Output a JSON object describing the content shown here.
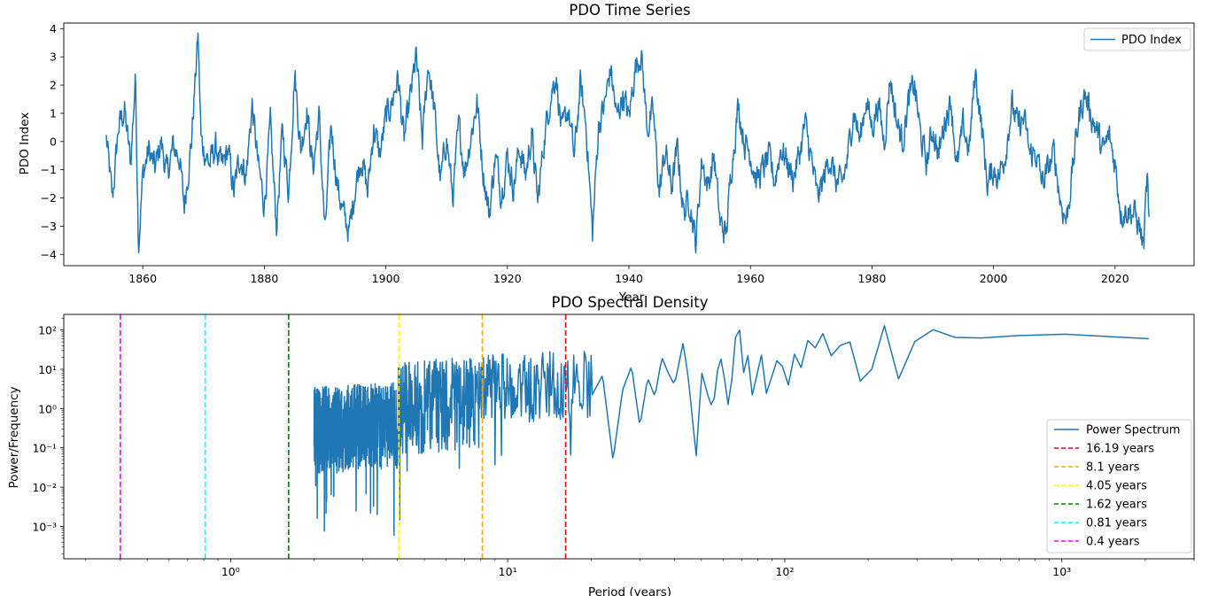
{
  "chart_data": [
    {
      "type": "line",
      "title": "PDO Time Series",
      "xlabel": "Year",
      "ylabel": "PDO Index",
      "xlim": [
        1847,
        2033
      ],
      "ylim": [
        -4.4,
        4.2
      ],
      "xticks": [
        "1860",
        "1880",
        "1900",
        "1920",
        "1940",
        "1960",
        "1980",
        "2000",
        "2020"
      ],
      "yticks": [
        "4",
        "3",
        "2",
        "1",
        "0",
        "−1",
        "−2",
        "−3",
        "−4"
      ],
      "legend_position": "top-right",
      "grid": false,
      "series": [
        {
          "name": "PDO Index",
          "color": "#1f77b4",
          "x_start": 1854.0,
          "x_step": 0.0833333,
          "n_points": 2060,
          "anchors": [
            [
              1854.0,
              0.1
            ],
            [
              1855.0,
              -2.1
            ],
            [
              1856.0,
              0.5
            ],
            [
              1857.0,
              1.1
            ],
            [
              1858.0,
              -0.8
            ],
            [
              1858.8,
              2.3
            ],
            [
              1859.3,
              -3.6
            ],
            [
              1860.0,
              -1.2
            ],
            [
              1861.0,
              -0.3
            ],
            [
              1862.0,
              -1.0
            ],
            [
              1863.0,
              0.0
            ],
            [
              1864.0,
              -1.2
            ],
            [
              1865.0,
              -0.2
            ],
            [
              1866.0,
              -0.5
            ],
            [
              1866.8,
              -2.3
            ],
            [
              1868.0,
              0.0
            ],
            [
              1869.1,
              3.8
            ],
            [
              1869.6,
              0.0
            ],
            [
              1871.0,
              -0.8
            ],
            [
              1872.0,
              -0.2
            ],
            [
              1873.0,
              -1.0
            ],
            [
              1874.0,
              -0.3
            ],
            [
              1875.0,
              -1.8
            ],
            [
              1876.0,
              -0.5
            ],
            [
              1877.0,
              -1.2
            ],
            [
              1878.0,
              1.3
            ],
            [
              1879.0,
              -0.9
            ],
            [
              1880.0,
              -2.2
            ],
            [
              1881.0,
              0.5
            ],
            [
              1882.0,
              -3.0
            ],
            [
              1883.0,
              0.4
            ],
            [
              1884.0,
              -1.8
            ],
            [
              1885.0,
              2.5
            ],
            [
              1886.0,
              -0.3
            ],
            [
              1887.0,
              1.2
            ],
            [
              1888.0,
              -1.0
            ],
            [
              1889.0,
              0.9
            ],
            [
              1890.0,
              -3.3
            ],
            [
              1891.0,
              0.6
            ],
            [
              1892.0,
              -1.5
            ],
            [
              1893.0,
              -2.6
            ],
            [
              1894.0,
              -3.2
            ],
            [
              1895.0,
              -1.5
            ],
            [
              1896.0,
              -0.5
            ],
            [
              1897.0,
              -1.8
            ],
            [
              1898.0,
              0.5
            ],
            [
              1899.0,
              -0.5
            ],
            [
              1900.0,
              0.8
            ],
            [
              1901.0,
              1.4
            ],
            [
              1902.0,
              2.3
            ],
            [
              1903.0,
              0.0
            ],
            [
              1904.0,
              1.5
            ],
            [
              1905.0,
              3.0
            ],
            [
              1906.0,
              0.0
            ],
            [
              1907.0,
              2.8
            ],
            [
              1908.0,
              1.0
            ],
            [
              1909.0,
              -1.5
            ],
            [
              1910.0,
              0.2
            ],
            [
              1911.0,
              -2.0
            ],
            [
              1912.0,
              0.5
            ],
            [
              1913.0,
              -1.0
            ],
            [
              1914.0,
              0.2
            ],
            [
              1915.0,
              1.4
            ],
            [
              1916.0,
              -1.0
            ],
            [
              1917.0,
              -2.6
            ],
            [
              1918.0,
              -0.5
            ],
            [
              1919.0,
              -1.8
            ],
            [
              1920.0,
              -0.5
            ],
            [
              1921.0,
              -1.6
            ],
            [
              1922.0,
              -0.2
            ],
            [
              1923.0,
              -1.2
            ],
            [
              1924.0,
              0.3
            ],
            [
              1925.0,
              -2.2
            ],
            [
              1926.0,
              0.0
            ],
            [
              1927.0,
              1.5
            ],
            [
              1928.0,
              2.4
            ],
            [
              1929.0,
              0.2
            ],
            [
              1930.0,
              1.2
            ],
            [
              1931.0,
              -0.6
            ],
            [
              1932.0,
              2.0
            ],
            [
              1933.0,
              0.5
            ],
            [
              1934.0,
              -3.3
            ],
            [
              1935.0,
              0.6
            ],
            [
              1936.0,
              1.3
            ],
            [
              1937.0,
              2.6
            ],
            [
              1938.0,
              0.8
            ],
            [
              1939.0,
              1.7
            ],
            [
              1940.0,
              0.8
            ],
            [
              1941.0,
              2.6
            ],
            [
              1942.0,
              3.2
            ],
            [
              1943.0,
              0.5
            ],
            [
              1944.0,
              1.0
            ],
            [
              1945.0,
              -1.8
            ],
            [
              1946.0,
              -0.3
            ],
            [
              1947.0,
              -1.6
            ],
            [
              1948.0,
              -0.3
            ],
            [
              1949.0,
              -2.5
            ],
            [
              1950.0,
              -2.0
            ],
            [
              1951.0,
              -3.6
            ],
            [
              1952.0,
              -0.6
            ],
            [
              1953.0,
              -1.6
            ],
            [
              1954.0,
              -0.5
            ],
            [
              1955.0,
              -2.9
            ],
            [
              1956.0,
              -3.3
            ],
            [
              1957.0,
              -0.6
            ],
            [
              1958.0,
              1.3
            ],
            [
              1959.0,
              0.0
            ],
            [
              1960.0,
              -0.4
            ],
            [
              1961.0,
              -1.4
            ],
            [
              1962.0,
              -1.0
            ],
            [
              1963.0,
              -0.6
            ],
            [
              1964.0,
              -1.4
            ],
            [
              1965.0,
              -0.2
            ],
            [
              1966.0,
              -0.7
            ],
            [
              1967.0,
              -1.3
            ],
            [
              1968.0,
              -0.5
            ],
            [
              1969.0,
              0.6
            ],
            [
              1970.0,
              -0.6
            ],
            [
              1971.0,
              -2.0
            ],
            [
              1972.0,
              -1.4
            ],
            [
              1973.0,
              -0.5
            ],
            [
              1974.0,
              -1.4
            ],
            [
              1975.0,
              -1.6
            ],
            [
              1976.0,
              -0.6
            ],
            [
              1977.0,
              1.2
            ],
            [
              1978.0,
              0.0
            ],
            [
              1979.0,
              1.5
            ],
            [
              1980.0,
              0.5
            ],
            [
              1981.0,
              1.4
            ],
            [
              1982.0,
              0.0
            ],
            [
              1983.0,
              2.3
            ],
            [
              1984.0,
              0.8
            ],
            [
              1985.0,
              0.0
            ],
            [
              1986.0,
              1.4
            ],
            [
              1987.0,
              2.0
            ],
            [
              1988.0,
              0.2
            ],
            [
              1989.0,
              -0.8
            ],
            [
              1990.0,
              0.5
            ],
            [
              1991.0,
              -0.5
            ],
            [
              1992.0,
              0.8
            ],
            [
              1993.0,
              1.5
            ],
            [
              1994.0,
              -1.0
            ],
            [
              1995.0,
              0.5
            ],
            [
              1996.0,
              -0.3
            ],
            [
              1997.0,
              2.5
            ],
            [
              1998.0,
              0.6
            ],
            [
              1999.0,
              -1.5
            ],
            [
              2000.0,
              -1.0
            ],
            [
              2001.0,
              -1.2
            ],
            [
              2002.0,
              -0.3
            ],
            [
              2003.0,
              1.3
            ],
            [
              2004.0,
              0.5
            ],
            [
              2005.0,
              0.8
            ],
            [
              2006.0,
              -0.5
            ],
            [
              2007.0,
              -0.4
            ],
            [
              2008.0,
              -1.5
            ],
            [
              2009.0,
              -1.0
            ],
            [
              2010.0,
              -0.4
            ],
            [
              2011.0,
              -2.1
            ],
            [
              2012.0,
              -2.8
            ],
            [
              2013.0,
              -1.0
            ],
            [
              2014.0,
              0.8
            ],
            [
              2015.0,
              1.7
            ],
            [
              2016.0,
              1.0
            ],
            [
              2017.0,
              0.4
            ],
            [
              2018.0,
              -0.4
            ],
            [
              2019.0,
              0.2
            ],
            [
              2020.0,
              -0.8
            ],
            [
              2021.0,
              -2.5
            ],
            [
              2022.0,
              -2.4
            ],
            [
              2023.0,
              -2.5
            ],
            [
              2024.0,
              -3.0
            ],
            [
              2024.7,
              -3.8
            ],
            [
              2025.3,
              -1.2
            ],
            [
              2025.7,
              -4.1
            ]
          ]
        }
      ]
    },
    {
      "type": "line",
      "title": "PDO Spectral Density",
      "xlabel": "Period (years)",
      "ylabel": "Power/Frequency",
      "x_scale": "log",
      "y_scale": "log",
      "xlim": [
        0.25,
        3000
      ],
      "ylim": [
        0.00015,
        250
      ],
      "xticks": [
        {
          "value": 1,
          "label": "10⁰"
        },
        {
          "value": 10,
          "label": "10¹"
        },
        {
          "value": 100,
          "label": "10²"
        },
        {
          "value": 1000,
          "label": "10³"
        }
      ],
      "yticks": [
        {
          "value": 100,
          "label": "10²"
        },
        {
          "value": 10,
          "label": "10¹"
        },
        {
          "value": 1,
          "label": "10⁰"
        },
        {
          "value": 0.1,
          "label": "10⁻¹"
        },
        {
          "value": 0.01,
          "label": "10⁻²"
        },
        {
          "value": 0.001,
          "label": "10⁻³"
        }
      ],
      "legend_position": "bottom-right",
      "grid": false,
      "series": [
        {
          "name": "Power Spectrum",
          "color": "#1f77b4",
          "period_min": 2.0,
          "period_max": 2060,
          "n_points": 1030,
          "anchors": [
            [
              2060,
              60
            ],
            [
              1030,
              78
            ],
            [
              687,
              72
            ],
            [
              515,
              63
            ],
            [
              412,
              65
            ],
            [
              343,
              102
            ],
            [
              294,
              50
            ],
            [
              257,
              5.5
            ],
            [
              229,
              130
            ],
            [
              206,
              10
            ],
            [
              187,
              5
            ],
            [
              172,
              50
            ],
            [
              158,
              40
            ],
            [
              147,
              22
            ],
            [
              137,
              85
            ],
            [
              129,
              35
            ],
            [
              121,
              55
            ],
            [
              114,
              10
            ],
            [
              108,
              26
            ],
            [
              103,
              4
            ],
            [
              98,
              12
            ],
            [
              94,
              18
            ],
            [
              90,
              7
            ],
            [
              86,
              2.2
            ],
            [
              82,
              30
            ],
            [
              79,
              6
            ],
            [
              76,
              2
            ],
            [
              73,
              40
            ],
            [
              71,
              8
            ],
            [
              68.7,
              100
            ],
            [
              66,
              60
            ],
            [
              64,
              3
            ],
            [
              62,
              1
            ],
            [
              60,
              12
            ],
            [
              58,
              25
            ],
            [
              56,
              2
            ],
            [
              54,
              1.2
            ],
            [
              50,
              9
            ],
            [
              48,
              0.055
            ],
            [
              45,
              5
            ],
            [
              43,
              48
            ],
            [
              40,
              4
            ],
            [
              38,
              8
            ],
            [
              36,
              20
            ],
            [
              34,
              2
            ],
            [
              32,
              6
            ],
            [
              30,
              0.35
            ],
            [
              28,
              12
            ],
            [
              26,
              3
            ],
            [
              24,
              0.05
            ],
            [
              22,
              7
            ],
            [
              20,
              2
            ],
            [
              18,
              0.8
            ],
            [
              16.5,
              5
            ],
            [
              15,
              2
            ],
            [
              13.7,
              0.012
            ],
            [
              12,
              4
            ],
            [
              10.5,
              0.5
            ],
            [
              9.3,
              10
            ],
            [
              8.2,
              0.015
            ],
            [
              7,
              2
            ],
            [
              5.9,
              0.002
            ],
            [
              5,
              3
            ],
            [
              4.1,
              0.012
            ],
            [
              3.5,
              1
            ],
            [
              3,
              0.03
            ],
            [
              2.5,
              0.15
            ],
            [
              2.3,
              0.0005
            ],
            [
              2.2,
              0.002
            ],
            [
              2.1,
              0.02
            ],
            [
              2.05,
              0.0003
            ],
            [
              2.0,
              0.3
            ]
          ]
        },
        {
          "name": "16.19 years",
          "period": 16.19,
          "color": "#ff0000",
          "style": "dashed"
        },
        {
          "name": "8.1 years",
          "period": 8.1,
          "color": "#ffa500",
          "style": "dashed"
        },
        {
          "name": "4.05 years",
          "period": 4.05,
          "color": "#ffff00",
          "style": "dashed"
        },
        {
          "name": "1.62 years",
          "period": 1.62,
          "color": "#008000",
          "style": "dashed"
        },
        {
          "name": "0.81 years",
          "period": 0.81,
          "color": "#00ffff",
          "style": "dashed"
        },
        {
          "name": "0.4 years",
          "period": 0.4,
          "color": "#ff00ff",
          "style": "dashed"
        }
      ]
    }
  ]
}
